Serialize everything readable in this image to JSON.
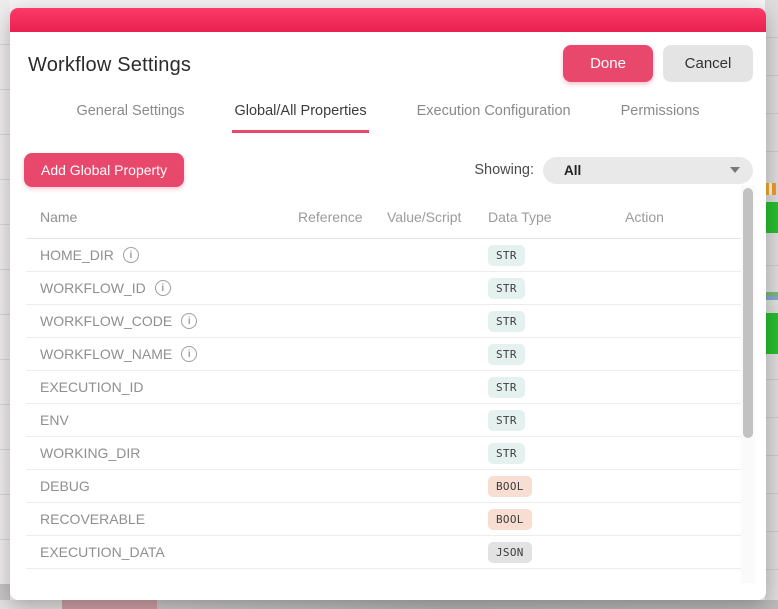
{
  "modal": {
    "title": "Workflow Settings",
    "done_label": "Done",
    "cancel_label": "Cancel",
    "tabs": [
      {
        "label": "General Settings",
        "active": false
      },
      {
        "label": "Global/All Properties",
        "active": true
      },
      {
        "label": "Execution Configuration",
        "active": false
      },
      {
        "label": "Permissions",
        "active": false
      }
    ],
    "add_button_label": "Add Global Property",
    "showing_label": "Showing:",
    "showing_value": "All",
    "table": {
      "columns": [
        "Name",
        "Reference",
        "Value/Script",
        "Data Type",
        "Action"
      ],
      "rows": [
        {
          "name": "HOME_DIR",
          "info": true,
          "type": "STR"
        },
        {
          "name": "WORKFLOW_ID",
          "info": true,
          "type": "STR"
        },
        {
          "name": "WORKFLOW_CODE",
          "info": true,
          "type": "STR"
        },
        {
          "name": "WORKFLOW_NAME",
          "info": true,
          "type": "STR"
        },
        {
          "name": "EXECUTION_ID",
          "info": false,
          "type": "STR"
        },
        {
          "name": "ENV",
          "info": false,
          "type": "STR"
        },
        {
          "name": "WORKING_DIR",
          "info": false,
          "type": "STR"
        },
        {
          "name": "DEBUG",
          "info": false,
          "type": "BOOL"
        },
        {
          "name": "RECOVERABLE",
          "info": false,
          "type": "BOOL"
        },
        {
          "name": "EXECUTION_DATA",
          "info": false,
          "type": "JSON"
        }
      ]
    }
  },
  "icons": {
    "info": "i",
    "dropdown_caret": "chevron-down"
  },
  "colors": {
    "accent": "#e9486d",
    "topbar_gradient_top": "#fb3b67",
    "topbar_gradient_bottom": "#e92050",
    "badges": {
      "STR": {
        "bg": "#e4f1ef"
      },
      "BOOL": {
        "bg": "#f7ddd2"
      },
      "JSON": {
        "bg": "#e2e2e2"
      }
    },
    "background_green": "#28bd30",
    "background_orange": "#f2a92d"
  }
}
